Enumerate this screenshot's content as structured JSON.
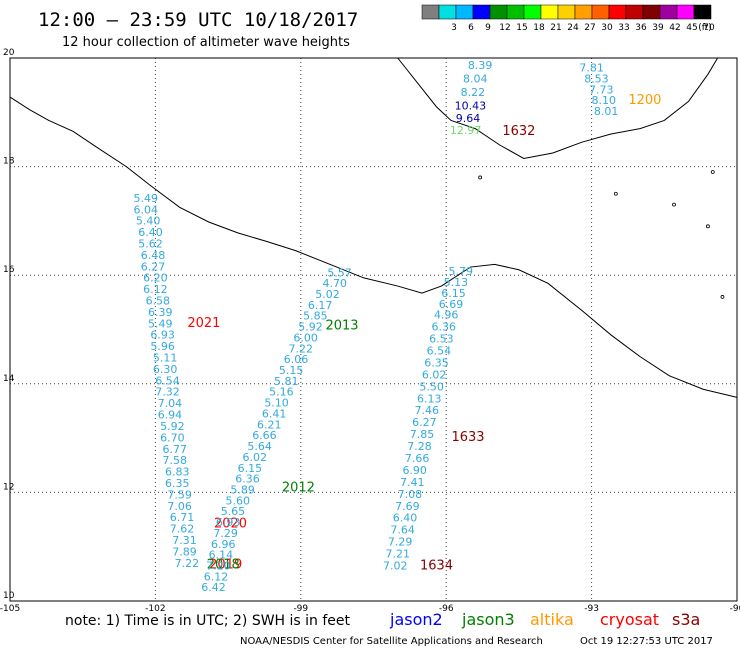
{
  "title": "12:00 – 23:59 UTC 10/18/2017",
  "subtitle": "12 hour collection of altimeter wave heights",
  "colorbar": {
    "unit": "(ft)",
    "bins": [
      {
        "label": "",
        "color": "#7f7f7f"
      },
      {
        "label": "3",
        "color": "#00e0e0"
      },
      {
        "label": "6",
        "color": "#00b8ff"
      },
      {
        "label": "9",
        "color": "#0000ff"
      },
      {
        "label": "12",
        "color": "#009000"
      },
      {
        "label": "15",
        "color": "#00c000"
      },
      {
        "label": "18",
        "color": "#00ff00"
      },
      {
        "label": "21",
        "color": "#ffff00"
      },
      {
        "label": "24",
        "color": "#ffd000"
      },
      {
        "label": "27",
        "color": "#ffa000"
      },
      {
        "label": "30",
        "color": "#ff6000"
      },
      {
        "label": "33",
        "color": "#ff0000"
      },
      {
        "label": "36",
        "color": "#c00000"
      },
      {
        "label": "39",
        "color": "#800000"
      },
      {
        "label": "42",
        "color": "#a000a0"
      },
      {
        "label": "45",
        "color": "#ff00ff"
      },
      {
        "label": "70",
        "color": "#000000"
      }
    ]
  },
  "axes": {
    "lon_ticks": [
      "-105",
      "-102",
      "-99",
      "-96",
      "-93",
      "-90"
    ],
    "lat_ticks": [
      "10",
      "12",
      "14",
      "16",
      "18",
      "20"
    ]
  },
  "colors": {
    "jason2": "#0000ff",
    "jason3": "#008000",
    "altika": "#ff9900",
    "cryosat": "#ff0000",
    "s3a": "#880000",
    "value_default": "#33aadd",
    "value_high": "#0000aa",
    "value_green": "#66dd66",
    "gridline": "#444444"
  },
  "tracks": [
    {
      "name": "1200",
      "sat": "altika",
      "label_lon": -91.9,
      "label_lat": 19.15,
      "points": [
        {
          "lon": -93.0,
          "lat": 19.75,
          "v": "7.81"
        },
        {
          "lon": -92.9,
          "lat": 19.55,
          "v": "8.53"
        },
        {
          "lon": -92.8,
          "lat": 19.35,
          "v": "7.73"
        },
        {
          "lon": -92.75,
          "lat": 19.15,
          "v": "8.10"
        },
        {
          "lon": -92.7,
          "lat": 18.95,
          "v": "8.01"
        }
      ]
    },
    {
      "name": "1632",
      "sat": "s3a",
      "label_lon": -94.5,
      "label_lat": 18.58,
      "points": [
        {
          "lon": -95.3,
          "lat": 19.8,
          "v": "8.39"
        },
        {
          "lon": -95.4,
          "lat": 19.55,
          "v": "8.04"
        },
        {
          "lon": -95.45,
          "lat": 19.3,
          "v": "8.22"
        },
        {
          "lon": -95.5,
          "lat": 19.05,
          "v": "10.43",
          "c": "high"
        },
        {
          "lon": -95.55,
          "lat": 18.82,
          "v": "9.64",
          "c": "high"
        },
        {
          "lon": -95.6,
          "lat": 18.6,
          "v": "12.97",
          "c": "green"
        }
      ]
    },
    {
      "name": "2021",
      "sat": "cryosat",
      "label_lon": -101.0,
      "label_lat": 15.05,
      "points": [
        {
          "lon": -102.2,
          "lat": 17.35,
          "v": "5.49"
        },
        {
          "lon": -102.2,
          "lat": 17.14,
          "v": "6.04"
        },
        {
          "lon": -102.15,
          "lat": 16.93,
          "v": "5.40"
        },
        {
          "lon": -102.1,
          "lat": 16.72,
          "v": "6.40"
        },
        {
          "lon": -102.1,
          "lat": 16.51,
          "v": "5.62"
        },
        {
          "lon": -102.05,
          "lat": 16.3,
          "v": "6.48"
        },
        {
          "lon": -102.05,
          "lat": 16.09,
          "v": "6.27"
        },
        {
          "lon": -102.0,
          "lat": 15.88,
          "v": "6.20"
        },
        {
          "lon": -102.0,
          "lat": 15.67,
          "v": "6.12"
        },
        {
          "lon": -101.95,
          "lat": 15.46,
          "v": "6.58"
        },
        {
          "lon": -101.9,
          "lat": 15.25,
          "v": "6.39"
        },
        {
          "lon": -101.9,
          "lat": 15.04,
          "v": "5.49"
        },
        {
          "lon": -101.85,
          "lat": 14.83,
          "v": "6.93"
        },
        {
          "lon": -101.85,
          "lat": 14.62,
          "v": "5.96"
        },
        {
          "lon": -101.8,
          "lat": 14.41,
          "v": "5.11"
        },
        {
          "lon": -101.8,
          "lat": 14.2,
          "v": "6.30"
        },
        {
          "lon": -101.75,
          "lat": 13.99,
          "v": "6.54"
        },
        {
          "lon": -101.75,
          "lat": 13.78,
          "v": "7.32"
        },
        {
          "lon": -101.7,
          "lat": 13.57,
          "v": "7.04"
        },
        {
          "lon": -101.7,
          "lat": 13.36,
          "v": "6.94"
        },
        {
          "lon": -101.65,
          "lat": 13.15,
          "v": "5.92"
        },
        {
          "lon": -101.65,
          "lat": 12.94,
          "v": "6.70"
        },
        {
          "lon": -101.6,
          "lat": 12.73,
          "v": "6.77"
        },
        {
          "lon": -101.6,
          "lat": 12.52,
          "v": "7.58"
        },
        {
          "lon": -101.55,
          "lat": 12.31,
          "v": "6.83"
        },
        {
          "lon": -101.55,
          "lat": 12.1,
          "v": "6.35"
        },
        {
          "lon": -101.5,
          "lat": 11.89,
          "v": "7.59"
        },
        {
          "lon": -101.5,
          "lat": 11.68,
          "v": "7.06"
        },
        {
          "lon": -101.45,
          "lat": 11.47,
          "v": "6.71"
        },
        {
          "lon": -101.45,
          "lat": 11.26,
          "v": "7.62"
        },
        {
          "lon": -101.4,
          "lat": 11.05,
          "v": "7.31"
        },
        {
          "lon": -101.4,
          "lat": 10.84,
          "v": "7.89"
        },
        {
          "lon": -101.35,
          "lat": 10.63,
          "v": "7.22"
        }
      ]
    },
    {
      "name": "2020",
      "sat": "cryosat",
      "label_lon": -100.45,
      "label_lat": 11.35,
      "points": []
    },
    {
      "name": "2019",
      "sat": "cryosat",
      "label_lon": -100.55,
      "label_lat": 10.6,
      "points": []
    },
    {
      "name": "2018",
      "sat": "jason3",
      "label_lon": -100.6,
      "label_lat": 10.6,
      "points": []
    },
    {
      "name": "2013",
      "sat": "jason3",
      "label_lon": -98.15,
      "label_lat": 15.0,
      "points": [
        {
          "lon": -98.2,
          "lat": 15.98,
          "v": "5.57"
        },
        {
          "lon": -98.3,
          "lat": 15.78,
          "v": "4.70"
        },
        {
          "lon": -98.45,
          "lat": 15.58,
          "v": "5.02"
        },
        {
          "lon": -98.6,
          "lat": 15.38,
          "v": "6.17"
        },
        {
          "lon": -98.7,
          "lat": 15.18,
          "v": "5.85"
        },
        {
          "lon": -98.8,
          "lat": 14.98,
          "v": "5.92"
        },
        {
          "lon": -98.9,
          "lat": 14.78,
          "v": "6.00"
        },
        {
          "lon": -99.0,
          "lat": 14.58,
          "v": "7.22"
        },
        {
          "lon": -99.1,
          "lat": 14.38,
          "v": "6.06"
        },
        {
          "lon": -99.2,
          "lat": 14.18,
          "v": "5.15"
        },
        {
          "lon": -99.3,
          "lat": 13.98,
          "v": "5.81"
        },
        {
          "lon": -99.4,
          "lat": 13.78,
          "v": "5.16"
        },
        {
          "lon": -99.5,
          "lat": 13.58,
          "v": "5.10"
        },
        {
          "lon": -99.55,
          "lat": 13.38,
          "v": "6.41"
        },
        {
          "lon": -99.65,
          "lat": 13.18,
          "v": "6.21"
        },
        {
          "lon": -99.75,
          "lat": 12.98,
          "v": "6.66"
        },
        {
          "lon": -99.85,
          "lat": 12.78,
          "v": "5.64"
        },
        {
          "lon": -99.95,
          "lat": 12.58,
          "v": "6.02"
        },
        {
          "lon": -100.05,
          "lat": 12.38,
          "v": "6.15"
        },
        {
          "lon": -100.1,
          "lat": 12.18,
          "v": "6.36"
        },
        {
          "lon": -100.2,
          "lat": 11.98,
          "v": "5.89"
        },
        {
          "lon": -100.3,
          "lat": 11.78,
          "v": "5.60"
        },
        {
          "lon": -100.4,
          "lat": 11.58,
          "v": "5.65"
        },
        {
          "lon": -100.5,
          "lat": 11.38,
          "v": "6.93"
        },
        {
          "lon": -100.55,
          "lat": 11.18,
          "v": "7.29"
        },
        {
          "lon": -100.6,
          "lat": 10.98,
          "v": "6.96"
        },
        {
          "lon": -100.65,
          "lat": 10.78,
          "v": "6.14"
        },
        {
          "lon": -100.7,
          "lat": 10.58,
          "v": "7.20"
        },
        {
          "lon": -100.75,
          "lat": 10.38,
          "v": "6.12"
        },
        {
          "lon": -100.8,
          "lat": 10.18,
          "v": "6.42"
        }
      ]
    },
    {
      "name": "2012",
      "sat": "jason3",
      "label_lon": -99.05,
      "label_lat": 12.02,
      "points": []
    },
    {
      "name": "1633",
      "sat": "s3a",
      "label_lon": -95.55,
      "label_lat": 12.95,
      "points": [
        {
          "lon": -95.7,
          "lat": 16.0,
          "v": "5.79"
        },
        {
          "lon": -95.8,
          "lat": 15.8,
          "v": "5.13"
        },
        {
          "lon": -95.85,
          "lat": 15.6,
          "v": "6.15"
        },
        {
          "lon": -95.9,
          "lat": 15.4,
          "v": "6.69"
        },
        {
          "lon": -96.0,
          "lat": 15.2,
          "v": "4.96"
        },
        {
          "lon": -96.05,
          "lat": 14.98,
          "v": "6.36"
        },
        {
          "lon": -96.1,
          "lat": 14.76,
          "v": "6.53"
        },
        {
          "lon": -96.15,
          "lat": 14.54,
          "v": "6.54"
        },
        {
          "lon": -96.2,
          "lat": 14.32,
          "v": "6.35"
        },
        {
          "lon": -96.25,
          "lat": 14.1,
          "v": "6.02"
        },
        {
          "lon": -96.3,
          "lat": 13.88,
          "v": "5.50"
        },
        {
          "lon": -96.35,
          "lat": 13.66,
          "v": "6.13"
        },
        {
          "lon": -96.4,
          "lat": 13.44,
          "v": "7.46"
        },
        {
          "lon": -96.45,
          "lat": 13.22,
          "v": "6.27"
        },
        {
          "lon": -96.5,
          "lat": 13.0,
          "v": "7.85"
        },
        {
          "lon": -96.55,
          "lat": 12.78,
          "v": "7.28"
        },
        {
          "lon": -96.6,
          "lat": 12.56,
          "v": "7.66"
        },
        {
          "lon": -96.65,
          "lat": 12.34,
          "v": "6.90"
        },
        {
          "lon": -96.7,
          "lat": 12.12,
          "v": "7.41"
        },
        {
          "lon": -96.75,
          "lat": 11.9,
          "v": "7.08"
        },
        {
          "lon": -96.8,
          "lat": 11.68,
          "v": "7.69"
        },
        {
          "lon": -96.85,
          "lat": 11.46,
          "v": "6.40"
        },
        {
          "lon": -96.9,
          "lat": 11.24,
          "v": "7.64"
        },
        {
          "lon": -96.95,
          "lat": 11.02,
          "v": "7.29"
        },
        {
          "lon": -97.0,
          "lat": 10.8,
          "v": "7.21"
        },
        {
          "lon": -97.05,
          "lat": 10.58,
          "v": "7.02"
        }
      ]
    },
    {
      "name": "1634",
      "sat": "s3a",
      "label_lon": -96.2,
      "label_lat": 10.58,
      "points": []
    }
  ],
  "note": "note: 1) Time is in UTC; 2) SWH is in feet",
  "legend": [
    {
      "key": "jason2",
      "label": "jason2"
    },
    {
      "key": "jason3",
      "label": "jason3"
    },
    {
      "key": "altika",
      "label": "altika"
    },
    {
      "key": "cryosat",
      "label": "cryosat"
    },
    {
      "key": "s3a",
      "label": "s3a"
    }
  ],
  "credit_left": "NOAA/NESDIS Center for Satellite Applications and Research",
  "credit_right": "Oct 19 12:27:53 UTC 2017"
}
